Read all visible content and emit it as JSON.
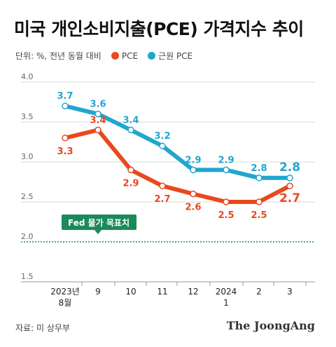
{
  "title": "미국 개인소비지출(PCE) 가격지수 추이",
  "unit_note": "단위: %, 전년 동월 대비",
  "source": "자료: 미 상무부",
  "brand": "The JoongAng",
  "colors": {
    "pce": "#e8491d",
    "core": "#21a6cf",
    "target": "#1a8a5a",
    "grid": "#dddddd",
    "axis_text": "#666666"
  },
  "chart_data": {
    "type": "line",
    "x": [
      [
        "2023년",
        "8월"
      ],
      [
        "9"
      ],
      [
        "10"
      ],
      [
        "11"
      ],
      [
        "12"
      ],
      [
        "2024",
        "1"
      ],
      [
        "2"
      ],
      [
        "3"
      ]
    ],
    "yticks": [
      "4.0",
      "3.5",
      "3.0",
      "2.5",
      "2.0",
      "1.5"
    ],
    "ylim": [
      1.5,
      4.0
    ],
    "series": [
      {
        "name": "PCE",
        "key": "pce",
        "values": [
          3.3,
          3.4,
          2.9,
          2.7,
          2.6,
          2.5,
          2.5,
          2.7
        ]
      },
      {
        "name": "근원 PCE",
        "key": "core",
        "values": [
          3.7,
          3.6,
          3.4,
          3.2,
          2.9,
          2.9,
          2.8,
          2.8
        ]
      }
    ],
    "labels": {
      "pce": [
        "3.3",
        "3.4",
        "2.9",
        "2.7",
        "2.6",
        "2.5",
        "2.5",
        "2.7"
      ],
      "core": [
        "3.7",
        "3.6",
        "3.4",
        "3.2",
        "2.9",
        "2.9",
        "2.8",
        "2.8"
      ]
    },
    "reference_line": {
      "value": 2.0,
      "label": "Fed 물가 목표치"
    },
    "legend_placement": "top-left",
    "grid": true
  }
}
